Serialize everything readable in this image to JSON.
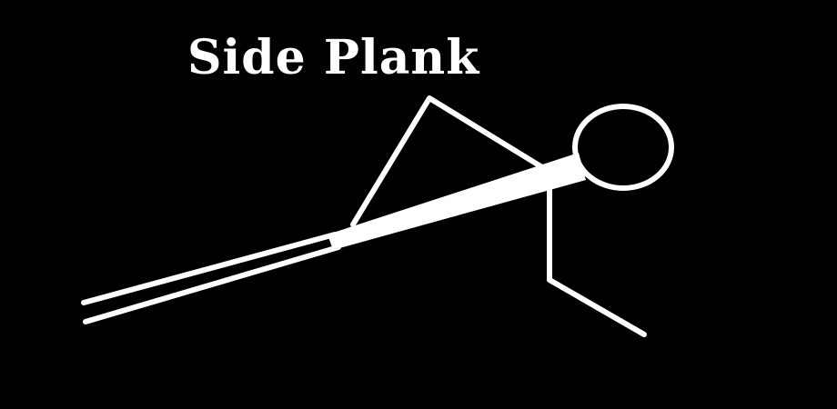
{
  "title": "Side Plank",
  "figure": {
    "subject": "stick-figure-side-plank",
    "parts": [
      "head",
      "torso",
      "upper-arm",
      "forearm",
      "legs",
      "raised-arm"
    ]
  },
  "colors": {
    "background": "#000000",
    "foreground": "#ffffff"
  }
}
